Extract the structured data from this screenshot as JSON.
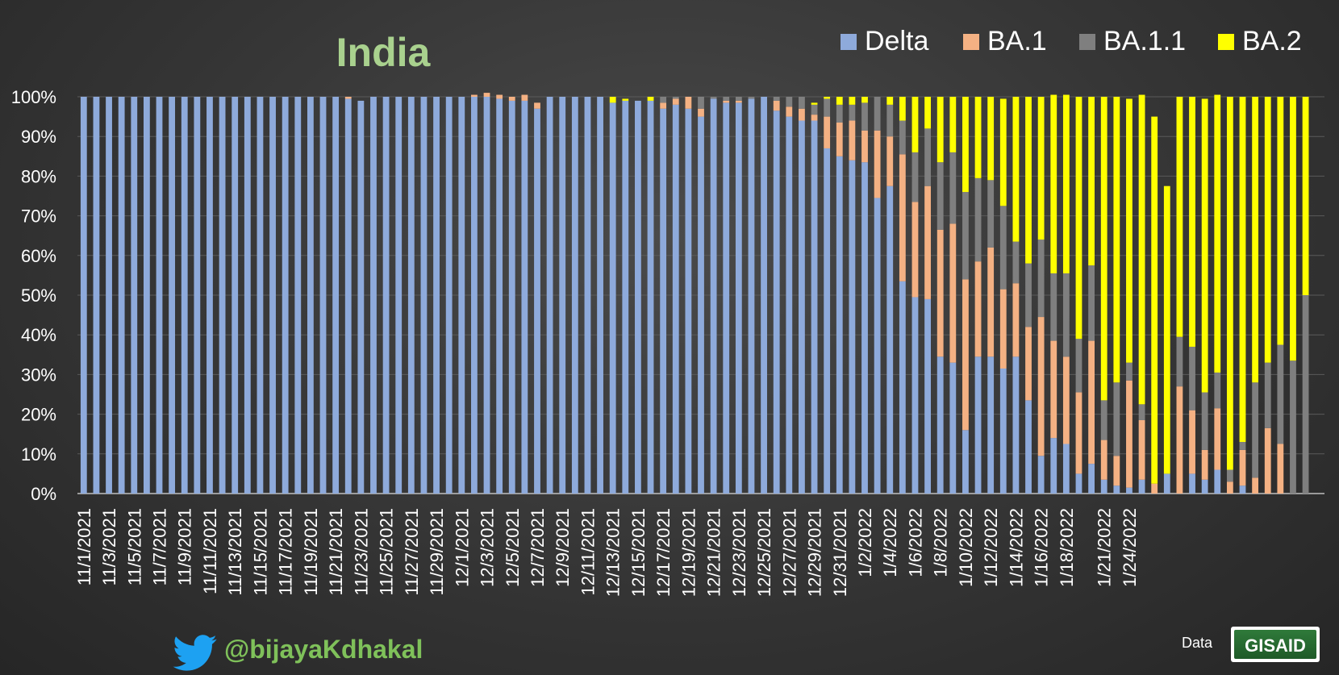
{
  "chart_data": {
    "type": "bar",
    "stacked": true,
    "percent": true,
    "title": "India",
    "ylim": [
      0,
      100
    ],
    "y_ticks": [
      "0%",
      "10%",
      "20%",
      "30%",
      "40%",
      "50%",
      "60%",
      "70%",
      "80%",
      "90%",
      "100%"
    ],
    "x_tick_labels": [
      "11/1/2021",
      "11/3/2021",
      "11/5/2021",
      "11/7/2021",
      "11/9/2021",
      "11/11/2021",
      "11/13/2021",
      "11/15/2021",
      "11/17/2021",
      "11/19/2021",
      "11/21/2021",
      "11/23/2021",
      "11/25/2021",
      "11/27/2021",
      "11/29/2021",
      "12/1/2021",
      "12/3/2021",
      "12/5/2021",
      "12/7/2021",
      "12/9/2021",
      "12/11/2021",
      "12/13/2021",
      "12/15/2021",
      "12/17/2021",
      "12/19/2021",
      "12/21/2021",
      "12/23/2021",
      "12/25/2021",
      "12/27/2021",
      "12/29/2021",
      "12/31/2021",
      "1/2/2022",
      "1/4/2022",
      "1/6/2022",
      "1/8/2022",
      "1/10/2022",
      "1/12/2022",
      "1/14/2022",
      "1/16/2022",
      "1/18/2022",
      "1/21/2022",
      "1/24/2022"
    ],
    "legend": [
      "Delta",
      "BA.1",
      "BA.1.1",
      "BA.2"
    ],
    "colors": {
      "Delta": "#8eaadb",
      "BA.1": "#f4b183",
      "BA.1.1": "#7f7f7f",
      "BA.2": "#ffff00"
    },
    "series": [
      {
        "name": "Delta",
        "values": [
          100,
          100,
          100,
          100,
          100,
          100,
          100,
          100,
          100,
          100,
          100,
          100,
          100,
          100,
          100,
          100,
          100,
          100,
          100,
          100,
          100,
          99.5,
          99,
          100,
          100,
          100,
          100,
          100,
          100,
          100,
          100,
          100,
          100,
          99.5,
          99,
          99,
          97,
          100,
          100,
          100,
          100,
          100,
          98.5,
          99,
          99,
          99,
          97,
          98,
          97,
          95,
          99.5,
          98.5,
          98.5,
          99.5,
          100,
          96.5,
          95,
          94,
          94,
          87,
          85,
          84,
          83.5,
          74.5,
          77.5,
          53.5,
          49.5,
          49,
          34.5,
          33,
          16,
          34.5,
          34.5,
          31.5,
          34.5,
          23.5,
          9.5,
          14,
          12.5,
          5,
          7.5,
          3.5,
          2,
          1.5,
          3.5,
          0,
          5,
          0,
          5,
          3.5,
          6,
          0,
          2,
          0,
          0,
          0,
          0,
          0,
          0
        ]
      },
      {
        "name": "BA.1",
        "values": [
          0,
          0,
          0,
          0,
          0,
          0,
          0,
          0,
          0,
          0,
          0,
          0,
          0,
          0,
          0,
          0,
          0,
          0,
          0,
          0,
          0,
          0.5,
          0,
          0,
          0,
          0,
          0,
          0,
          0,
          0,
          0,
          0.5,
          1,
          1,
          1,
          1.5,
          1.5,
          0,
          0,
          0,
          0,
          0,
          0,
          0,
          0,
          0,
          1.5,
          1.5,
          3,
          2,
          0,
          0.5,
          0.5,
          0,
          0,
          2.5,
          2.5,
          3,
          1.5,
          8,
          8.5,
          10,
          8,
          17,
          12.5,
          32,
          24,
          28.5,
          32,
          35,
          38,
          24,
          27.5,
          20,
          18.5,
          18.5,
          35,
          24.5,
          22,
          20.5,
          31,
          10,
          7.5,
          27,
          15,
          2.5,
          0,
          27,
          16,
          7.5,
          15.5,
          3,
          9,
          4,
          16.5,
          12.5,
          0,
          0
        ]
      },
      {
        "name": "BA.1.1",
        "values": [
          0,
          0,
          0,
          0,
          0,
          0,
          0,
          0,
          0,
          0,
          0,
          0,
          0,
          0,
          0,
          0,
          0,
          0,
          0,
          0,
          0,
          0,
          0,
          0,
          0,
          0,
          0,
          0,
          0,
          0,
          0,
          0,
          0,
          0,
          0,
          0,
          0,
          0,
          0,
          0,
          0,
          0,
          0,
          0,
          0,
          0,
          1.5,
          0.5,
          0,
          3,
          0.5,
          1,
          1,
          0.5,
          0,
          1,
          2.5,
          3,
          2.5,
          4.5,
          4.5,
          4,
          7,
          8.5,
          8,
          8.5,
          12.5,
          14.5,
          17,
          18,
          22,
          21,
          17,
          21,
          10.5,
          16,
          19.5,
          17,
          21,
          13.5,
          19,
          10,
          18.5,
          4.5,
          4,
          0,
          0,
          12.5,
          16,
          14.5,
          9,
          3,
          2,
          24,
          16.5,
          25,
          33.5,
          50
        ]
      },
      {
        "name": "BA.2",
        "values": [
          0,
          0,
          0,
          0,
          0,
          0,
          0,
          0,
          0,
          0,
          0,
          0,
          0,
          0,
          0,
          0,
          0,
          0,
          0,
          0,
          0,
          0,
          0,
          0,
          0,
          0,
          0,
          0,
          0,
          0,
          0,
          0,
          0,
          0,
          0,
          0,
          0,
          0,
          0,
          0,
          0,
          0,
          1.5,
          0.5,
          0,
          1,
          0,
          0,
          0,
          0,
          0,
          0,
          0,
          0,
          0,
          0,
          0,
          0,
          0.5,
          0.5,
          2,
          2,
          1.5,
          0,
          2,
          6,
          14,
          8,
          16.5,
          14,
          24,
          20.5,
          21,
          27,
          36.5,
          42,
          36,
          45,
          45,
          61,
          42.5,
          76.5,
          72,
          66.5,
          78,
          92.5,
          72.5,
          60.5,
          63,
          74,
          70,
          94,
          87,
          72,
          67,
          62.5,
          66.5,
          50
        ]
      }
    ]
  },
  "footer": {
    "handle": "@bijayaKdhakal",
    "data_label": "Data",
    "logo_text": "GISAID"
  }
}
